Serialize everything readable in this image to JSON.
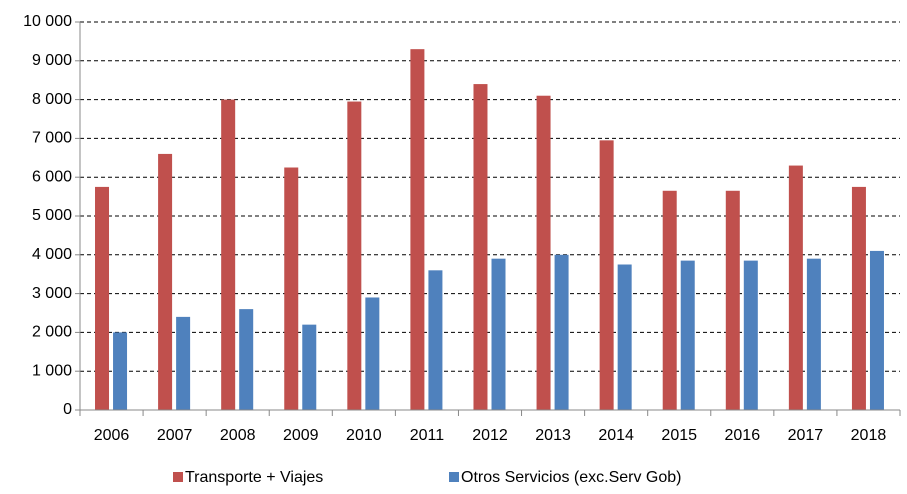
{
  "chart_data": {
    "type": "bar",
    "categories": [
      "2006",
      "2007",
      "2008",
      "2009",
      "2010",
      "2011",
      "2012",
      "2013",
      "2014",
      "2015",
      "2016",
      "2017",
      "2018"
    ],
    "series": [
      {
        "name": "Transporte + Viajes",
        "color": "#c0504d",
        "values": [
          5750,
          6600,
          8000,
          6250,
          7950,
          9300,
          8400,
          8100,
          6950,
          5650,
          5650,
          6300,
          5750
        ]
      },
      {
        "name": "Otros Servicios (exc.Serv Gob)",
        "color": "#4f81bd",
        "values": [
          2000,
          2400,
          2600,
          2200,
          2900,
          3600,
          3900,
          4000,
          3750,
          3850,
          3850,
          3900,
          4100
        ]
      }
    ],
    "ylim": [
      0,
      10000
    ],
    "yticks": [
      0,
      {
        "value": 1000,
        "label": "1 000"
      },
      {
        "value": 2000,
        "label": "2 000"
      },
      {
        "value": 3000,
        "label": "3 000"
      },
      {
        "value": 4000,
        "label": "4 000"
      },
      {
        "value": 5000,
        "label": "5 000"
      },
      {
        "value": 6000,
        "label": "6 000"
      },
      {
        "value": 7000,
        "label": "7 000"
      },
      {
        "value": 8000,
        "label": "8 000"
      },
      {
        "value": 9000,
        "label": "9 000"
      },
      {
        "value": 10000,
        "label": "10 000"
      }
    ],
    "grid": true,
    "legend": "bottom"
  }
}
